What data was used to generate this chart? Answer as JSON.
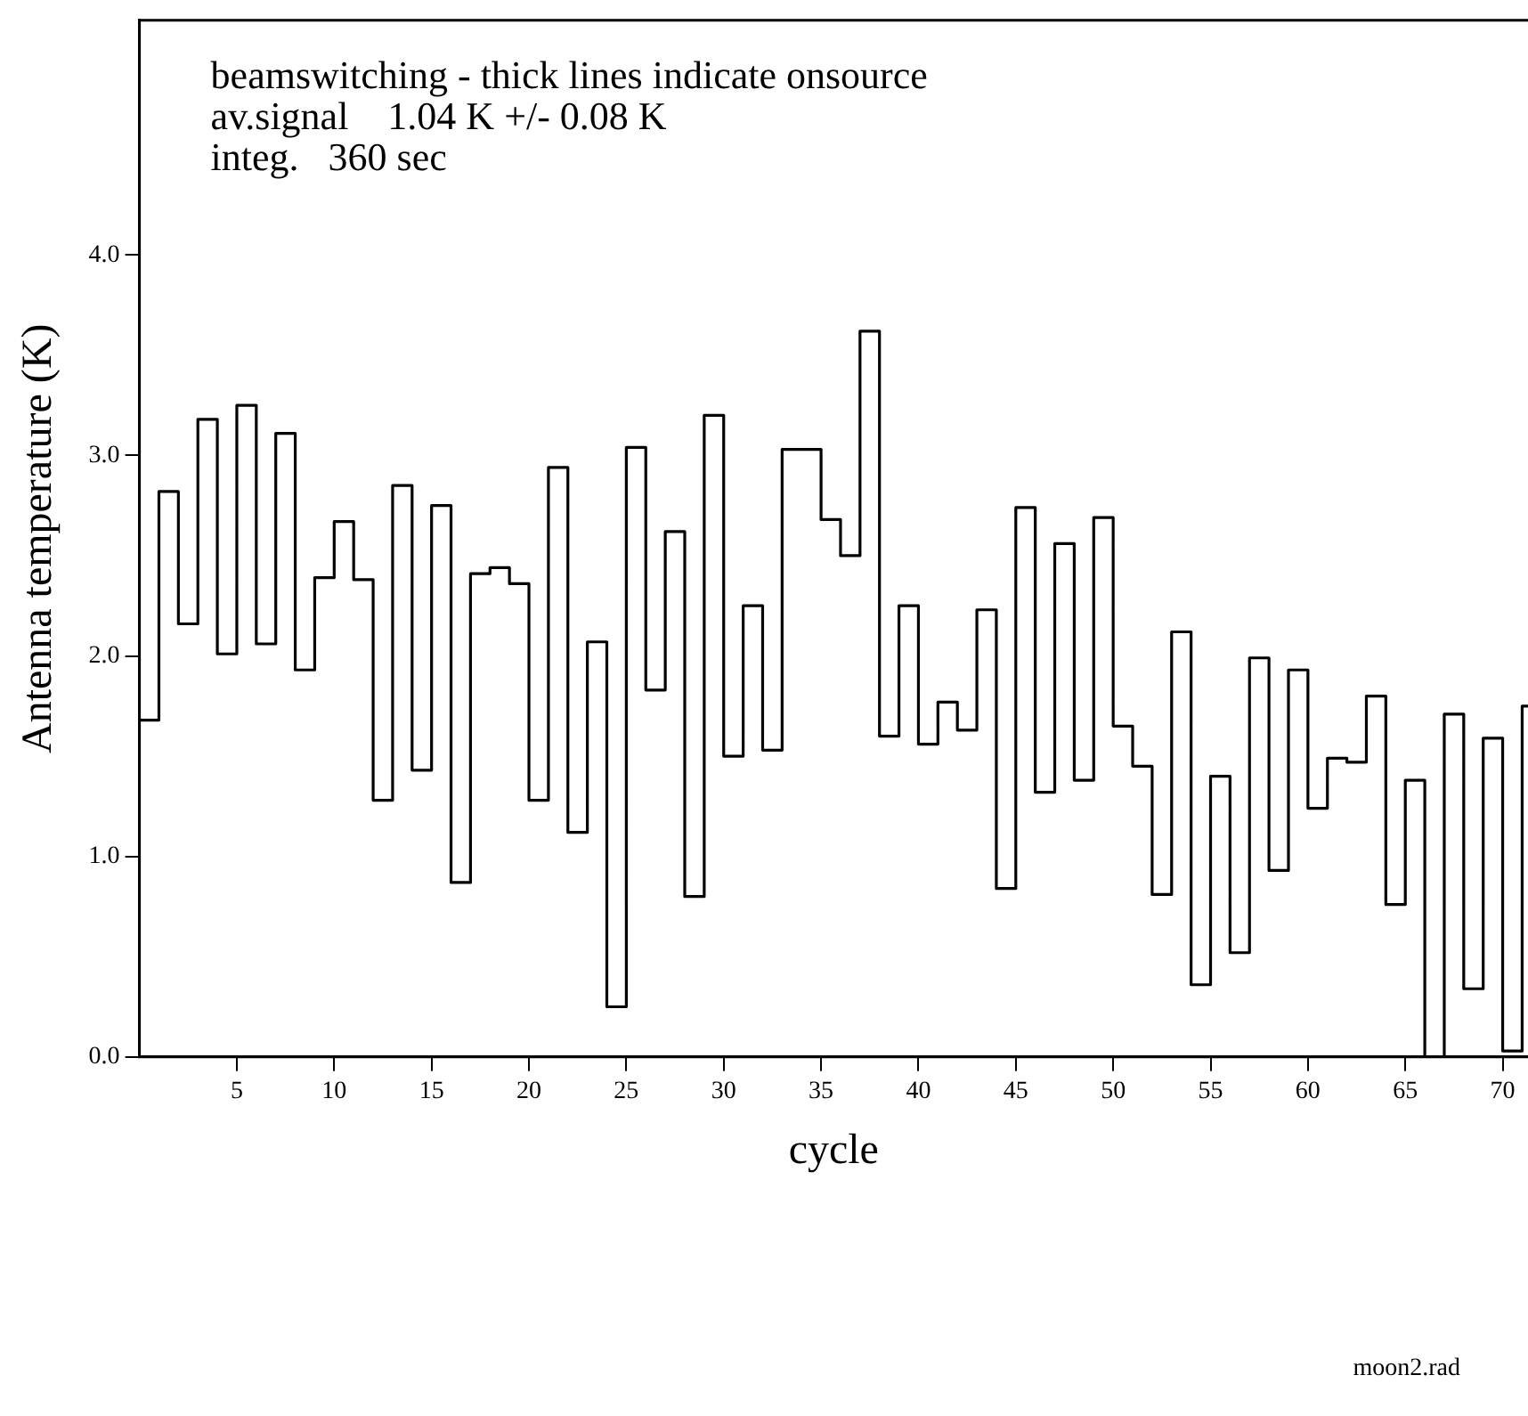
{
  "chart_data": {
    "type": "step",
    "xlabel": "cycle",
    "ylabel": "Antenna temperature (K)",
    "annotations": [
      "beamswitching - thick lines indicate onsource",
      "av.signal    1.04 K +/- 0.08 K",
      "integ.   360 sec",
      "moon2.rad"
    ],
    "x": [
      0,
      1,
      2,
      3,
      4,
      5,
      6,
      7,
      8,
      9,
      10,
      11,
      12,
      13,
      14,
      15,
      16,
      17,
      18,
      19,
      20,
      21,
      22,
      23,
      24,
      25,
      26,
      27,
      28,
      29,
      30,
      31,
      32,
      33,
      34,
      35,
      36,
      37,
      38,
      39,
      40,
      41,
      42,
      43,
      44,
      45,
      46,
      47,
      48,
      49,
      50,
      51,
      52,
      53,
      54,
      55,
      56,
      57,
      58,
      59,
      60,
      61,
      62,
      63,
      64,
      65,
      66,
      67,
      68,
      69,
      70,
      71
    ],
    "series": [
      {
        "color": "#000000",
        "values": [
          1.68,
          2.82,
          2.16,
          3.18,
          2.01,
          3.25,
          2.06,
          3.11,
          1.93,
          2.39,
          2.67,
          2.38,
          1.28,
          2.85,
          1.43,
          2.75,
          0.87,
          2.41,
          2.44,
          2.36,
          1.28,
          2.94,
          1.12,
          2.07,
          0.25,
          3.04,
          1.83,
          2.62,
          0.8,
          3.2,
          1.5,
          2.25,
          1.53,
          3.03,
          3.03,
          2.68,
          2.5,
          3.62,
          1.6,
          2.25,
          1.56,
          1.77,
          1.63,
          2.23,
          0.84,
          2.74,
          1.32,
          2.56,
          1.38,
          2.69,
          1.65,
          1.45,
          0.81,
          2.12,
          0.36,
          1.4,
          0.52,
          1.99,
          0.93,
          1.93,
          1.24,
          1.49,
          1.47,
          1.8,
          0.76,
          1.38,
          0,
          1.71,
          0.34,
          1.59,
          0.03,
          1.75
        ]
      }
    ],
    "xlim": [
      0,
      71.3
    ],
    "xticks": [
      5,
      10,
      15,
      20,
      25,
      30,
      35,
      40,
      45,
      50,
      55,
      60,
      65,
      70
    ],
    "ylim": [
      0,
      5.17
    ],
    "yticks": [
      {
        "value": 0,
        "label": "0.0"
      },
      {
        "value": 1,
        "label": "1.0"
      },
      {
        "value": 2,
        "label": "2.0"
      },
      {
        "value": 3,
        "label": "3.0"
      },
      {
        "value": 4,
        "label": "4.0"
      }
    ],
    "grid": false,
    "legend": false,
    "marker": "none",
    "line_style": "solid"
  }
}
